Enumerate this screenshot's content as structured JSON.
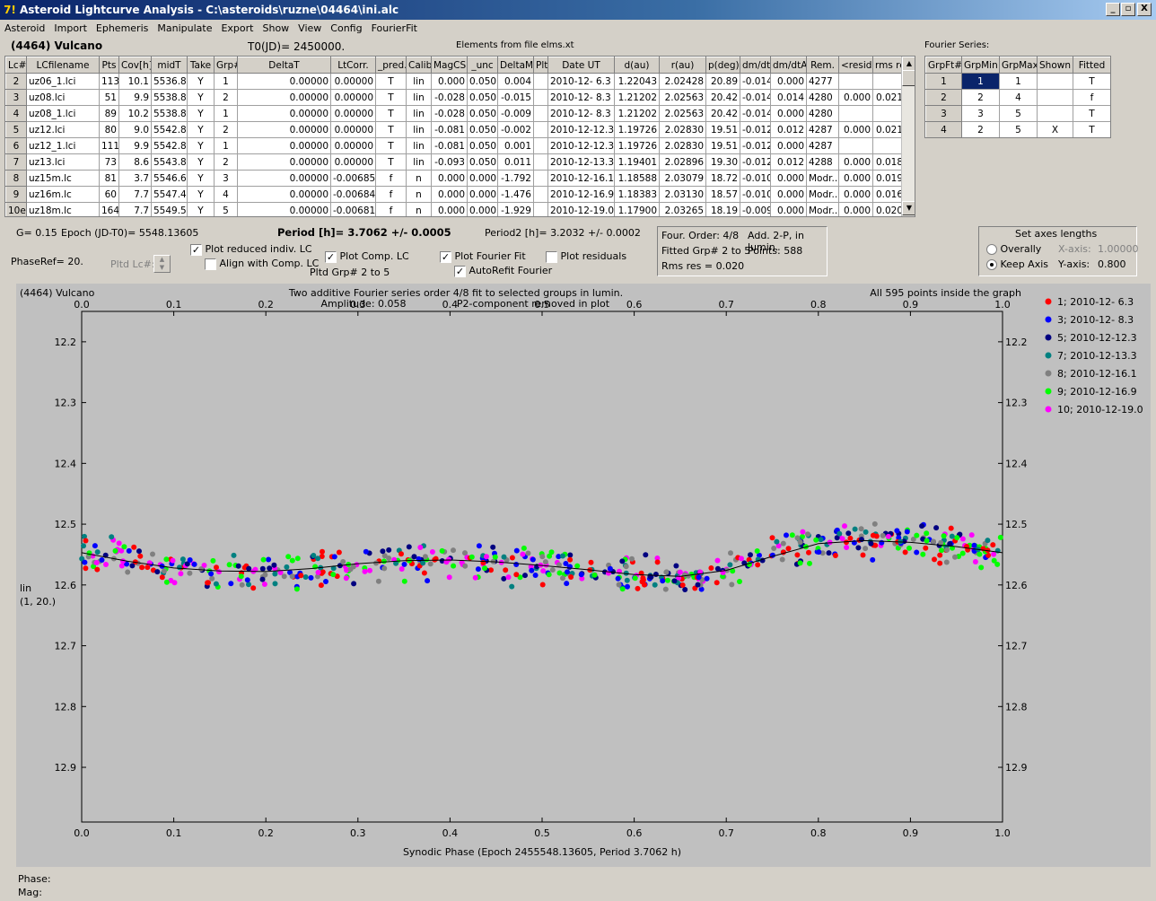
{
  "window": {
    "title": "Asteroid Lightcurve Analysis - C:\\asteroids\\ruzne\\04464\\ini.alc",
    "app_icon": "7!",
    "min": "_",
    "max": "▫",
    "close": "X"
  },
  "menu": [
    "Asteroid",
    "Import",
    "Ephemeris",
    "Manipulate",
    "Export",
    "Show",
    "View",
    "Config",
    "FourierFit"
  ],
  "header": {
    "object": "(4464) Vulcano",
    "t0": "T0(JD)= 2450000.",
    "elements": "Elements from file elms.xt",
    "fourier_title": "Fourier Series:"
  },
  "lc_table": {
    "columns": [
      "Lc#",
      "LCfilename",
      "Pts",
      "Cov[h]",
      "midT",
      "Take",
      "Grp#",
      "DeltaT",
      "LtCorr.",
      "_pred.",
      "Calib.",
      "MagCS",
      "_unc",
      "DeltaM",
      "Plt",
      "Date UT",
      "d(au)",
      "r(au)",
      "p(deg)",
      "dm/dt",
      "dm/dtA",
      "Rem.",
      "<resid>",
      "rms res"
    ],
    "rows": [
      [
        "2",
        "uz06_1.lci",
        "113",
        "10.1",
        "5536.8",
        "Y",
        "1",
        "0.00000",
        "0.00000",
        "T",
        "lin",
        "0.000",
        "0.050",
        "0.004",
        "",
        "2010-12- 6.3",
        "1.22043",
        "2.02428",
        "20.89",
        "-0.014",
        "0.000",
        "4277",
        "",
        ""
      ],
      [
        "3",
        "uz08.lci",
        "51",
        "9.9",
        "5538.8",
        "Y",
        "2",
        "0.00000",
        "0.00000",
        "T",
        "lin",
        "-0.028",
        "0.050",
        "-0.015",
        "",
        "2010-12- 8.3",
        "1.21202",
        "2.02563",
        "20.42",
        "-0.014",
        "0.014",
        "4280",
        "0.000",
        "0.021"
      ],
      [
        "4",
        "uz08_1.lci",
        "89",
        "10.2",
        "5538.8",
        "Y",
        "1",
        "0.00000",
        "0.00000",
        "T",
        "lin",
        "-0.028",
        "0.050",
        "-0.009",
        "",
        "2010-12- 8.3",
        "1.21202",
        "2.02563",
        "20.42",
        "-0.014",
        "0.000",
        "4280",
        "",
        ""
      ],
      [
        "5",
        "uz12.lci",
        "80",
        "9.0",
        "5542.8",
        "Y",
        "2",
        "0.00000",
        "0.00000",
        "T",
        "lin",
        "-0.081",
        "0.050",
        "-0.002",
        "",
        "2010-12-12.3",
        "1.19726",
        "2.02830",
        "19.51",
        "-0.012",
        "0.012",
        "4287",
        "0.000",
        "0.021"
      ],
      [
        "6",
        "uz12_1.lci",
        "111",
        "9.9",
        "5542.8",
        "Y",
        "1",
        "0.00000",
        "0.00000",
        "T",
        "lin",
        "-0.081",
        "0.050",
        "0.001",
        "",
        "2010-12-12.3",
        "1.19726",
        "2.02830",
        "19.51",
        "-0.012",
        "0.000",
        "4287",
        "",
        ""
      ],
      [
        "7",
        "uz13.lci",
        "73",
        "8.6",
        "5543.8",
        "Y",
        "2",
        "0.00000",
        "0.00000",
        "T",
        "lin",
        "-0.093",
        "0.050",
        "0.011",
        "",
        "2010-12-13.3",
        "1.19401",
        "2.02896",
        "19.30",
        "-0.012",
        "0.012",
        "4288",
        "0.000",
        "0.018"
      ],
      [
        "8",
        "uz15m.lc",
        "81",
        "3.7",
        "5546.6",
        "Y",
        "3",
        "0.00000",
        "-0.00685",
        "f",
        "n",
        "0.000",
        "0.000",
        "-1.792",
        "",
        "2010-12-16.1",
        "1.18588",
        "2.03079",
        "18.72",
        "-0.010",
        "0.000",
        "Modr...",
        "0.000",
        "0.019"
      ],
      [
        "9",
        "uz16m.lc",
        "60",
        "7.7",
        "5547.4",
        "Y",
        "4",
        "0.00000",
        "-0.00684",
        "f",
        "n",
        "0.000",
        "0.000",
        "-1.476",
        "",
        "2010-12-16.9",
        "1.18383",
        "2.03130",
        "18.57",
        "-0.010",
        "0.000",
        "Modr...",
        "0.000",
        "0.016"
      ],
      [
        "10e",
        "uz18m.lc",
        "164",
        "7.7",
        "5549.5",
        "Y",
        "5",
        "0.00000",
        "-0.00681",
        "f",
        "n",
        "0.000",
        "0.000",
        "-1.929",
        "",
        "2010-12-19.0",
        "1.17900",
        "2.03265",
        "18.19",
        "-0.009",
        "0.000",
        "Modr...",
        "0.000",
        "0.020"
      ]
    ]
  },
  "fourier_table": {
    "columns": [
      "GrpFt#",
      "GrpMin",
      "GrpMax",
      "Shown",
      "Fitted"
    ],
    "rows": [
      [
        "1",
        "1",
        "1",
        "",
        "T"
      ],
      [
        "2",
        "2",
        "4",
        "",
        "f"
      ],
      [
        "3",
        "3",
        "5",
        "",
        "T"
      ],
      [
        "4",
        "2",
        "5",
        "X",
        "T"
      ]
    ]
  },
  "controls": {
    "g": "G= 0.15",
    "epoch": "Epoch (JD-T0)= 5548.13605",
    "period": "Period [h]= 3.7062 +/- 0.0005",
    "period2": "Period2 [h]= 3.2032 +/- 0.0002",
    "phaseref": "PhaseRef= 20.",
    "pltd_lc": "Pltd Lc#:",
    "plot_reduced": "Plot reduced indiv. LC",
    "align_comp": "Align with Comp. LC",
    "plot_comp": "Plot Comp. LC",
    "pltd_grp": "Pltd Grp#  2   to   5",
    "plot_fourier": "Plot Fourier Fit",
    "autorefit": "AutoRefit Fourier",
    "plot_residuals": "Plot residuals",
    "info": {
      "order": "Four. Order:  4/8",
      "add": "Add. 2-P, in lumin.",
      "fitted": "Fitted Grp# 2 to 5",
      "points": "Points: 588",
      "rms": "Rms res      = 0.020"
    },
    "axes": {
      "title": "Set axes lengths",
      "overall": "Overally",
      "keep": "Keep Axis",
      "xaxis_label": "X-axis:",
      "xaxis_val": "1.00000",
      "yaxis_label": "Y-axis:",
      "yaxis_val": "0.800"
    }
  },
  "plot": {
    "object": "(4464) Vulcano",
    "title1": "Two additive Fourier series order 4/8 fit to selected groups in lumin.",
    "amplitude": "Amplitude: 0.058",
    "p2": "P2-component removed in plot",
    "inside": "All 595 points inside the graph",
    "ylabel1": "lin",
    "ylabel2": "(1, 20.)",
    "xlabel": "Synodic Phase (Epoch 2455548.13605, Period 3.7062 h)"
  },
  "chart_data": {
    "type": "scatter",
    "xlim": [
      0.0,
      1.0
    ],
    "ylim": [
      12.15,
      12.99
    ],
    "y_inverted": true,
    "xticks": [
      "0.0",
      "0.1",
      "0.2",
      "0.3",
      "0.4",
      "0.5",
      "0.6",
      "0.7",
      "0.8",
      "0.9",
      "1.0"
    ],
    "yticks": [
      "12.2",
      "12.3",
      "12.4",
      "12.5",
      "12.6",
      "12.7",
      "12.8",
      "12.9"
    ],
    "legend": [
      {
        "name": "1; 2010-12- 6.3",
        "color": "#ff0000"
      },
      {
        "name": "3; 2010-12- 8.3",
        "color": "#0000ff"
      },
      {
        "name": "5; 2010-12-12.3",
        "color": "#000080"
      },
      {
        "name": "7; 2010-12-13.3",
        "color": "#008080"
      },
      {
        "name": "8; 2010-12-16.1",
        "color": "#808080"
      },
      {
        "name": "9; 2010-12-16.9",
        "color": "#00ff00"
      },
      {
        "name": "10; 2010-12-19.0",
        "color": "#ff00ff"
      }
    ],
    "fit_curve": {
      "x": [
        0.0,
        0.05,
        0.1,
        0.15,
        0.2,
        0.25,
        0.3,
        0.35,
        0.4,
        0.45,
        0.5,
        0.55,
        0.6,
        0.65,
        0.7,
        0.75,
        0.8,
        0.85,
        0.9,
        0.95,
        1.0
      ],
      "y": [
        12.547,
        12.561,
        12.572,
        12.577,
        12.578,
        12.573,
        12.565,
        12.56,
        12.559,
        12.562,
        12.568,
        12.575,
        12.583,
        12.586,
        12.576,
        12.553,
        12.532,
        12.527,
        12.53,
        12.537,
        12.547
      ]
    }
  }
}
